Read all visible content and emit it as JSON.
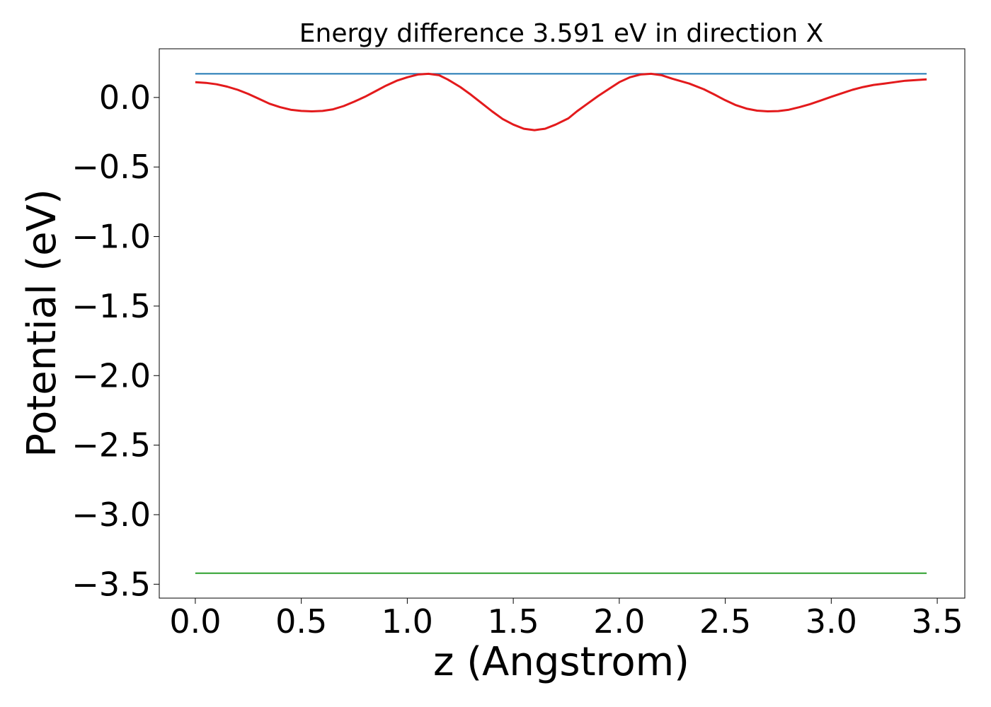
{
  "chart_data": {
    "type": "line",
    "title": "Energy difference 3.591 eV in direction X",
    "xlabel": "z (Angstrom)",
    "ylabel": "Potential (eV)",
    "xlim": [
      -0.17,
      3.63
    ],
    "ylim": [
      -3.6,
      0.35
    ],
    "x_ticks": [
      0.0,
      0.5,
      1.0,
      1.5,
      2.0,
      2.5,
      3.0,
      3.5
    ],
    "x_tick_labels": [
      "0.0",
      "0.5",
      "1.0",
      "1.5",
      "2.0",
      "2.5",
      "3.0",
      "3.5"
    ],
    "y_ticks": [
      0.0,
      -0.5,
      -1.0,
      -1.5,
      -2.0,
      -2.5,
      -3.0,
      -3.5
    ],
    "y_tick_labels": [
      "0.0",
      "−0.5",
      "−1.0",
      "−1.5",
      "−2.0",
      "−2.5",
      "−3.0",
      "−3.5"
    ],
    "grid": false,
    "series": [
      {
        "color": "#1f77b4",
        "x": [
          0.0,
          3.45
        ],
        "y": [
          0.17,
          0.17
        ]
      },
      {
        "color": "#2ca02c",
        "x": [
          0.0,
          3.45
        ],
        "y": [
          -3.421,
          -3.421
        ]
      },
      {
        "color": "#e31a1c",
        "x": [
          0.0,
          0.05,
          0.1,
          0.15,
          0.2,
          0.25,
          0.3,
          0.35,
          0.4,
          0.45,
          0.5,
          0.55,
          0.6,
          0.65,
          0.7,
          0.75,
          0.8,
          0.85,
          0.9,
          0.95,
          1.0,
          1.05,
          1.1,
          1.15,
          1.19,
          1.25,
          1.3,
          1.35,
          1.4,
          1.45,
          1.5,
          1.55,
          1.6,
          1.65,
          1.7,
          1.76,
          1.8,
          1.85,
          1.9,
          1.95,
          2.0,
          2.05,
          2.1,
          2.15,
          2.2,
          2.25,
          2.33,
          2.4,
          2.45,
          2.5,
          2.55,
          2.6,
          2.65,
          2.7,
          2.75,
          2.8,
          2.85,
          2.9,
          2.95,
          3.0,
          3.05,
          3.1,
          3.15,
          3.2,
          3.25,
          3.3,
          3.35,
          3.4,
          3.45
        ],
        "y": [
          0.11,
          0.105,
          0.095,
          0.078,
          0.055,
          0.025,
          -0.01,
          -0.045,
          -0.07,
          -0.088,
          -0.097,
          -0.1,
          -0.097,
          -0.085,
          -0.062,
          -0.03,
          0.005,
          0.045,
          0.085,
          0.12,
          0.145,
          0.165,
          0.17,
          0.16,
          0.13,
          0.075,
          0.02,
          -0.04,
          -0.1,
          -0.155,
          -0.195,
          -0.225,
          -0.235,
          -0.225,
          -0.195,
          -0.15,
          -0.1,
          -0.045,
          0.01,
          0.06,
          0.11,
          0.145,
          0.165,
          0.17,
          0.16,
          0.135,
          0.1,
          0.058,
          0.02,
          -0.02,
          -0.055,
          -0.08,
          -0.095,
          -0.1,
          -0.098,
          -0.088,
          -0.07,
          -0.048,
          -0.022,
          0.005,
          0.03,
          0.055,
          0.075,
          0.09,
          0.1,
          0.11,
          0.12,
          0.125,
          0.13
        ]
      }
    ]
  }
}
